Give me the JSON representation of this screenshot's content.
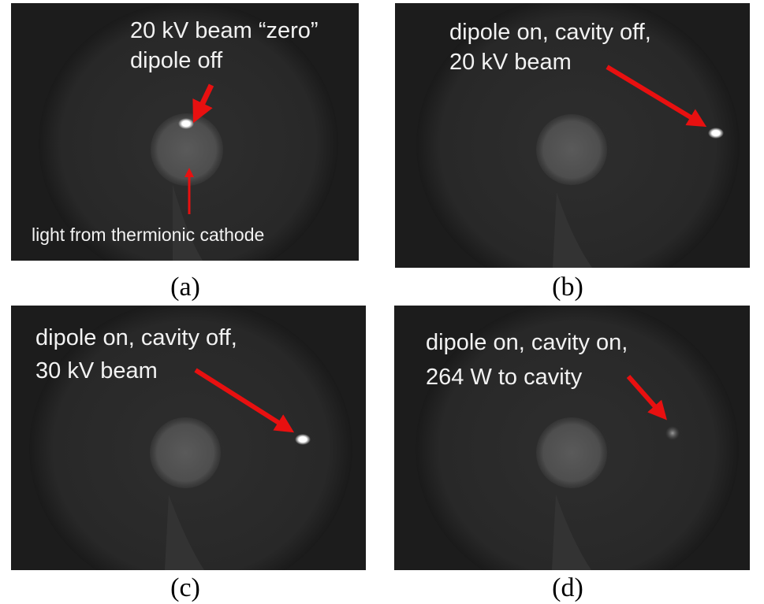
{
  "panels": [
    {
      "caption": "(a)",
      "annotations": [
        "20 kV beam “zero”",
        "dipole off",
        "light from thermionic cathode"
      ]
    },
    {
      "caption": "(b)",
      "annotations": [
        "dipole on, cavity off,",
        "20 kV beam"
      ]
    },
    {
      "caption": "(c)",
      "annotations": [
        "dipole on, cavity off,",
        "30 kV beam"
      ]
    },
    {
      "caption": "(d)",
      "annotations": [
        "dipole on, cavity on,",
        "264 W to cavity"
      ]
    }
  ]
}
